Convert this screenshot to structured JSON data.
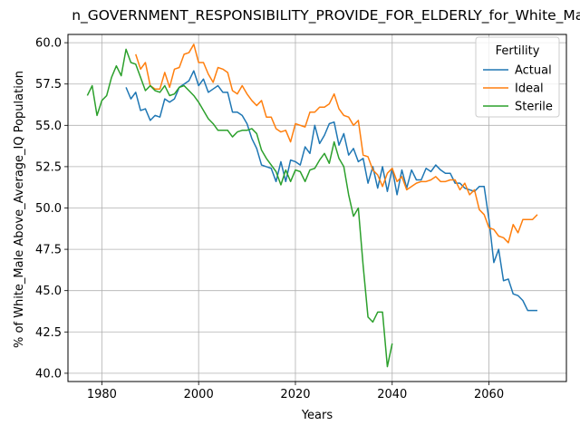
{
  "chart_data": {
    "type": "line",
    "title": "n_GOVERNMENT_RESPONSIBILITY_PROVIDE_FOR_ELDERLY_for_White_Male_Al",
    "xlabel": "Years",
    "ylabel": "% of White_Male Above_Average_IQ Population",
    "xlim": [
      1973,
      2076
    ],
    "ylim": [
      39.5,
      60.5
    ],
    "x_ticks": [
      1980,
      2000,
      2020,
      2040,
      2060
    ],
    "y_ticks": [
      40.0,
      42.5,
      45.0,
      47.5,
      50.0,
      52.5,
      55.0,
      57.5,
      60.0
    ],
    "x_tick_labels": [
      "1980",
      "2000",
      "2020",
      "2040",
      "2060"
    ],
    "y_tick_labels": [
      "40.0",
      "42.5",
      "45.0",
      "47.5",
      "50.0",
      "52.5",
      "55.0",
      "57.5",
      "60.0"
    ],
    "grid": true,
    "legend": {
      "title": "Fertility",
      "position": "top-right"
    },
    "series": [
      {
        "name": "Actual",
        "color": "#1f77b4",
        "x": [
          1985,
          1986,
          1987,
          1988,
          1989,
          1990,
          1991,
          1992,
          1993,
          1994,
          1995,
          1996,
          1997,
          1998,
          1999,
          2000,
          2001,
          2002,
          2003,
          2004,
          2005,
          2006,
          2007,
          2008,
          2009,
          2010,
          2011,
          2012,
          2013,
          2014,
          2015,
          2016,
          2017,
          2018,
          2019,
          2020,
          2021,
          2022,
          2023,
          2024,
          2025,
          2026,
          2027,
          2028,
          2029,
          2030,
          2031,
          2032,
          2033,
          2034,
          2035,
          2036,
          2037,
          2038,
          2039,
          2040,
          2041,
          2042,
          2043,
          2044,
          2045,
          2046,
          2047,
          2048,
          2049,
          2050,
          2051,
          2052,
          2053,
          2054,
          2055,
          2056,
          2057,
          2058,
          2059,
          2060,
          2061,
          2062,
          2063,
          2064,
          2065,
          2066,
          2067,
          2068,
          2069,
          2070
        ],
        "values": [
          57.3,
          56.6,
          57.0,
          55.9,
          56.0,
          55.3,
          55.6,
          55.5,
          56.6,
          56.4,
          56.6,
          57.3,
          57.5,
          57.7,
          58.3,
          57.4,
          57.8,
          57.0,
          57.2,
          57.4,
          57.0,
          57.0,
          55.8,
          55.8,
          55.6,
          55.1,
          54.2,
          53.6,
          52.6,
          52.5,
          52.4,
          51.6,
          52.8,
          51.6,
          52.9,
          52.8,
          52.6,
          53.7,
          53.3,
          55.0,
          53.9,
          54.4,
          55.1,
          55.2,
          53.8,
          54.5,
          53.2,
          53.6,
          52.8,
          53.0,
          51.5,
          52.5,
          51.2,
          52.5,
          51.0,
          52.4,
          50.8,
          52.3,
          51.2,
          52.3,
          51.7,
          51.7,
          52.4,
          52.2,
          52.6,
          52.3,
          52.1,
          52.1,
          51.5,
          51.5,
          51.2,
          51.1,
          51.0,
          51.3,
          51.3,
          49.3,
          46.7,
          47.5,
          45.6,
          45.7,
          44.8,
          44.7,
          44.4,
          43.8,
          43.8,
          43.8
        ]
      },
      {
        "name": "Ideal",
        "color": "#ff7f0e",
        "x": [
          1987,
          1988,
          1989,
          1990,
          1991,
          1992,
          1993,
          1994,
          1995,
          1996,
          1997,
          1998,
          1999,
          2000,
          2001,
          2002,
          2003,
          2004,
          2005,
          2006,
          2007,
          2008,
          2009,
          2010,
          2011,
          2012,
          2013,
          2014,
          2015,
          2016,
          2017,
          2018,
          2019,
          2020,
          2021,
          2022,
          2023,
          2024,
          2025,
          2026,
          2027,
          2028,
          2029,
          2030,
          2031,
          2032,
          2033,
          2034,
          2035,
          2036,
          2037,
          2038,
          2039,
          2040,
          2041,
          2042,
          2043,
          2044,
          2045,
          2046,
          2047,
          2048,
          2049,
          2050,
          2051,
          2052,
          2053,
          2054,
          2055,
          2056,
          2057,
          2058,
          2059,
          2060,
          2061,
          2062,
          2063,
          2064,
          2065,
          2066,
          2067,
          2068,
          2069,
          2070
        ],
        "values": [
          59.3,
          58.4,
          58.8,
          57.4,
          57.2,
          57.2,
          58.2,
          57.3,
          58.4,
          58.5,
          59.3,
          59.4,
          59.9,
          58.8,
          58.8,
          58.1,
          57.6,
          58.5,
          58.4,
          58.2,
          57.1,
          56.9,
          57.4,
          56.9,
          56.5,
          56.2,
          56.5,
          55.5,
          55.5,
          54.8,
          54.6,
          54.7,
          54.0,
          55.1,
          55.0,
          54.9,
          55.8,
          55.8,
          56.1,
          56.1,
          56.3,
          56.9,
          56.0,
          55.6,
          55.5,
          55.0,
          55.3,
          53.2,
          53.1,
          52.3,
          52.0,
          51.3,
          52.1,
          52.4,
          51.6,
          51.9,
          51.1,
          51.3,
          51.5,
          51.6,
          51.6,
          51.7,
          51.9,
          51.6,
          51.6,
          51.7,
          51.7,
          51.1,
          51.5,
          50.8,
          51.1,
          49.9,
          49.6,
          48.8,
          48.7,
          48.3,
          48.2,
          47.9,
          49.0,
          48.5,
          49.3,
          49.3,
          49.3,
          49.6
        ]
      },
      {
        "name": "Sterile",
        "color": "#2ca02c",
        "x": [
          1977,
          1978,
          1979,
          1980,
          1981,
          1982,
          1983,
          1984,
          1985,
          1986,
          1987,
          1988,
          1989,
          1990,
          1991,
          1992,
          1993,
          1994,
          1995,
          1996,
          1997,
          1998,
          1999,
          2000,
          2001,
          2002,
          2003,
          2004,
          2005,
          2006,
          2007,
          2008,
          2009,
          2010,
          2011,
          2012,
          2013,
          2014,
          2015,
          2016,
          2017,
          2018,
          2019,
          2020,
          2021,
          2022,
          2023,
          2024,
          2025,
          2026,
          2027,
          2028,
          2029,
          2030,
          2031,
          2032,
          2033,
          2034,
          2035,
          2036,
          2037,
          2038,
          2039,
          2040
        ],
        "values": [
          56.8,
          57.4,
          55.6,
          56.5,
          56.8,
          57.9,
          58.6,
          58.0,
          59.6,
          58.8,
          58.7,
          57.9,
          57.1,
          57.4,
          57.1,
          57.0,
          57.4,
          56.8,
          56.9,
          57.3,
          57.4,
          57.1,
          56.8,
          56.4,
          55.9,
          55.4,
          55.1,
          54.7,
          54.7,
          54.7,
          54.3,
          54.6,
          54.7,
          54.7,
          54.8,
          54.5,
          53.5,
          53.0,
          52.6,
          52.2,
          51.4,
          52.3,
          51.6,
          52.3,
          52.2,
          51.6,
          52.3,
          52.4,
          52.9,
          53.3,
          52.7,
          54.0,
          53.0,
          52.5,
          50.8,
          49.5,
          50.0,
          46.5,
          43.4,
          43.1,
          43.7,
          43.7,
          40.4,
          41.8
        ]
      }
    ]
  }
}
